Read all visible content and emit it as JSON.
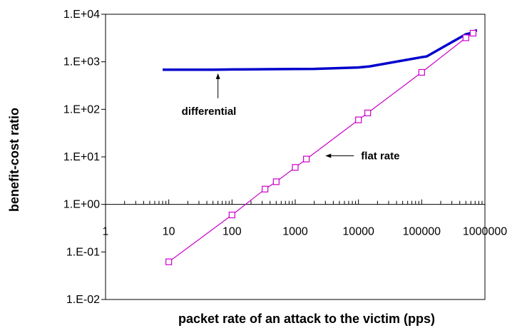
{
  "chart_data": {
    "type": "line",
    "title": "",
    "xlabel": "packet rate of an attack to the victim (pps)",
    "ylabel": "benefit-cost ratio",
    "x_scale": "log",
    "y_scale": "log",
    "xlim": [
      1,
      1000000
    ],
    "ylim": [
      0.01,
      10000
    ],
    "x_tick_labels": [
      "1",
      "10",
      "100",
      "1000",
      "10000",
      "100000",
      "1000000"
    ],
    "y_tick_labels": [
      "1.E-02",
      "1.E-01",
      "1.E+00",
      "1.E+01",
      "1.E+02",
      "1.E+03",
      "1.E+04"
    ],
    "grid": false,
    "legend": "none",
    "series": [
      {
        "color": "#0000cc",
        "x": [
          8,
          15,
          50,
          100,
          200,
          400,
          1000,
          2000,
          10000,
          15000,
          100000,
          120000,
          500000,
          600000,
          700000,
          750000
        ],
        "y": [
          680,
          680,
          680,
          690,
          695,
          700,
          705,
          710,
          760,
          800,
          1250,
          1300,
          3800,
          4000,
          4500,
          4600
        ]
      },
      {
        "color": "#cc00cc",
        "marker": "square",
        "x": [
          10,
          100,
          333,
          500,
          1000,
          1500,
          10000,
          14000,
          100000,
          500000,
          650000
        ],
        "y": [
          0.062,
          0.6,
          2.1,
          3.0,
          6.0,
          9.0,
          60,
          84,
          600,
          3200,
          4000
        ]
      }
    ],
    "annotations": [
      {
        "text": "differential",
        "target_x": 60,
        "target_y": 680
      },
      {
        "text": "flat rate",
        "target_x": 2500,
        "target_y": 6.5
      }
    ]
  }
}
